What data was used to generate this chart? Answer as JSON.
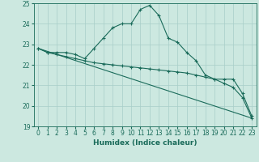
{
  "xlabel": "Humidex (Indice chaleur)",
  "xlim": [
    -0.5,
    23.5
  ],
  "ylim": [
    19,
    25
  ],
  "yticks": [
    19,
    20,
    21,
    22,
    23,
    24,
    25
  ],
  "xticks": [
    0,
    1,
    2,
    3,
    4,
    5,
    6,
    7,
    8,
    9,
    10,
    11,
    12,
    13,
    14,
    15,
    16,
    17,
    18,
    19,
    20,
    21,
    22,
    23
  ],
  "background_color": "#cce8e0",
  "grid_color": "#a8cec8",
  "line_color": "#1a6b5a",
  "lines": [
    {
      "x": [
        0,
        1,
        2,
        3,
        4,
        5,
        6,
        7,
        8,
        9,
        10,
        11,
        12,
        13,
        14,
        15,
        16,
        17,
        18,
        19,
        20,
        21,
        22,
        23
      ],
      "y": [
        22.8,
        22.6,
        22.6,
        22.6,
        22.5,
        22.3,
        22.8,
        23.3,
        23.8,
        24.0,
        24.0,
        24.7,
        24.9,
        24.4,
        23.3,
        23.1,
        22.6,
        22.2,
        21.5,
        21.3,
        21.3,
        21.3,
        20.6,
        19.5
      ]
    },
    {
      "x": [
        0,
        1,
        2,
        3,
        4,
        5,
        6,
        7,
        8,
        9,
        10,
        11,
        12,
        13,
        14,
        15,
        16,
        17,
        18,
        19,
        20,
        21,
        22,
        23
      ],
      "y": [
        22.8,
        22.6,
        22.5,
        22.4,
        22.3,
        22.2,
        22.1,
        22.05,
        22.0,
        21.95,
        21.9,
        21.85,
        21.8,
        21.75,
        21.7,
        21.65,
        21.6,
        21.5,
        21.4,
        21.3,
        21.1,
        20.9,
        20.4,
        19.4
      ]
    },
    {
      "x": [
        0,
        23
      ],
      "y": [
        22.8,
        19.4
      ]
    }
  ]
}
